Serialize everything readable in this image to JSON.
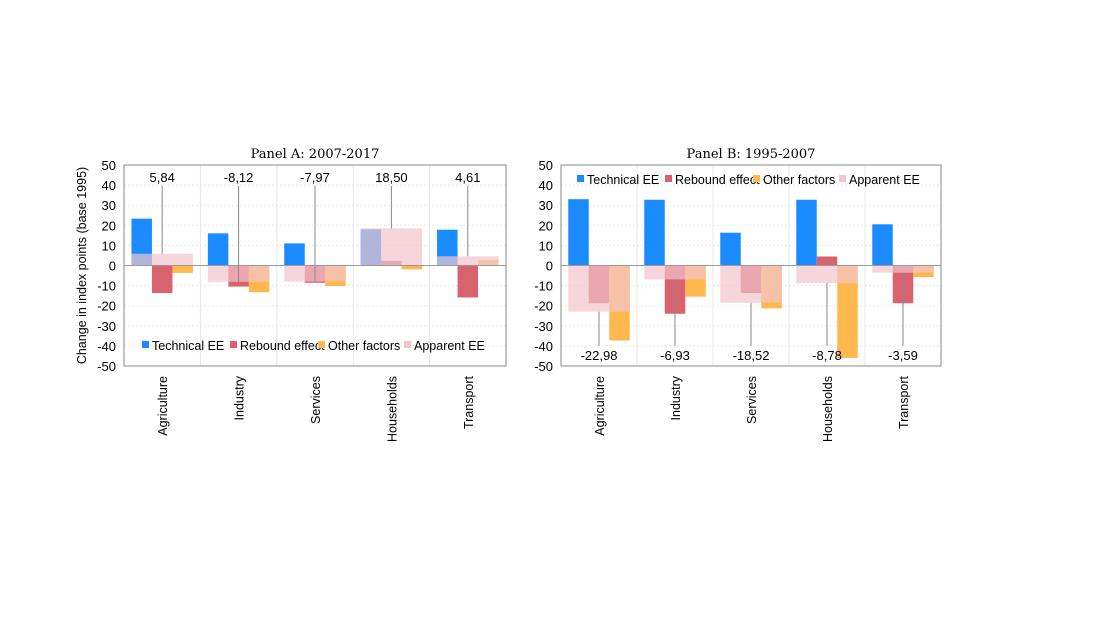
{
  "chart_data": [
    {
      "type": "bar",
      "title": "Panel A: 2007-2017",
      "ylabel": "Change in index points (base 1995)",
      "ylim": [
        -50,
        50
      ],
      "yticks": [
        50,
        40,
        30,
        20,
        10,
        0,
        -10,
        -20,
        -30,
        -40,
        -50
      ],
      "grid": true,
      "legend_placement": "bottom",
      "annotation_position": "top",
      "categories": [
        "Agriculture",
        "Industry",
        "Services",
        "Households",
        "Transport"
      ],
      "series": [
        {
          "name": "Technical EE",
          "color": "#1a8cff",
          "values": [
            23.3,
            16.0,
            11.0,
            18.0,
            17.8
          ]
        },
        {
          "name": "Rebound effect",
          "color": "#d9626f",
          "values": [
            -13.7,
            -10.5,
            -8.6,
            2.3,
            -15.9
          ]
        },
        {
          "name": "Other factors",
          "color": "#ffb84d",
          "values": [
            -3.7,
            -13.3,
            -10.2,
            -1.9,
            2.8
          ]
        },
        {
          "name": "Apparent EE",
          "color": "#f2c4cc",
          "values": [
            5.84,
            -8.12,
            -7.97,
            18.5,
            4.61
          ]
        }
      ],
      "annotations": [
        "5,84",
        "-8,12",
        "-7,97",
        "18,50",
        "4,61"
      ]
    },
    {
      "type": "bar",
      "title": "Panel B: 1995-2007",
      "ylabel": "",
      "ylim": [
        -50,
        50
      ],
      "yticks": [
        50,
        40,
        30,
        20,
        10,
        0,
        -10,
        -20,
        -30,
        -40,
        -50
      ],
      "grid": true,
      "legend_placement": "top",
      "annotation_position": "bottom",
      "categories": [
        "Agriculture",
        "Industry",
        "Services",
        "Households",
        "Transport"
      ],
      "series": [
        {
          "name": "Technical EE",
          "color": "#1a8cff",
          "values": [
            33.0,
            32.7,
            16.3,
            32.7,
            20.5
          ]
        },
        {
          "name": "Rebound effect",
          "color": "#d9626f",
          "values": [
            -18.8,
            -24.0,
            -13.7,
            4.5,
            -18.8
          ]
        },
        {
          "name": "Other factors",
          "color": "#ffb84d",
          "values": [
            -37.3,
            -15.5,
            -21.3,
            -46.0,
            -5.8
          ]
        },
        {
          "name": "Apparent EE",
          "color": "#f2c4cc",
          "values": [
            -22.98,
            -6.93,
            -18.52,
            -8.78,
            -3.59
          ]
        }
      ],
      "annotations": [
        "-22,98",
        "-6,93",
        "-18,52",
        "-8,78",
        "-3,59"
      ]
    }
  ]
}
